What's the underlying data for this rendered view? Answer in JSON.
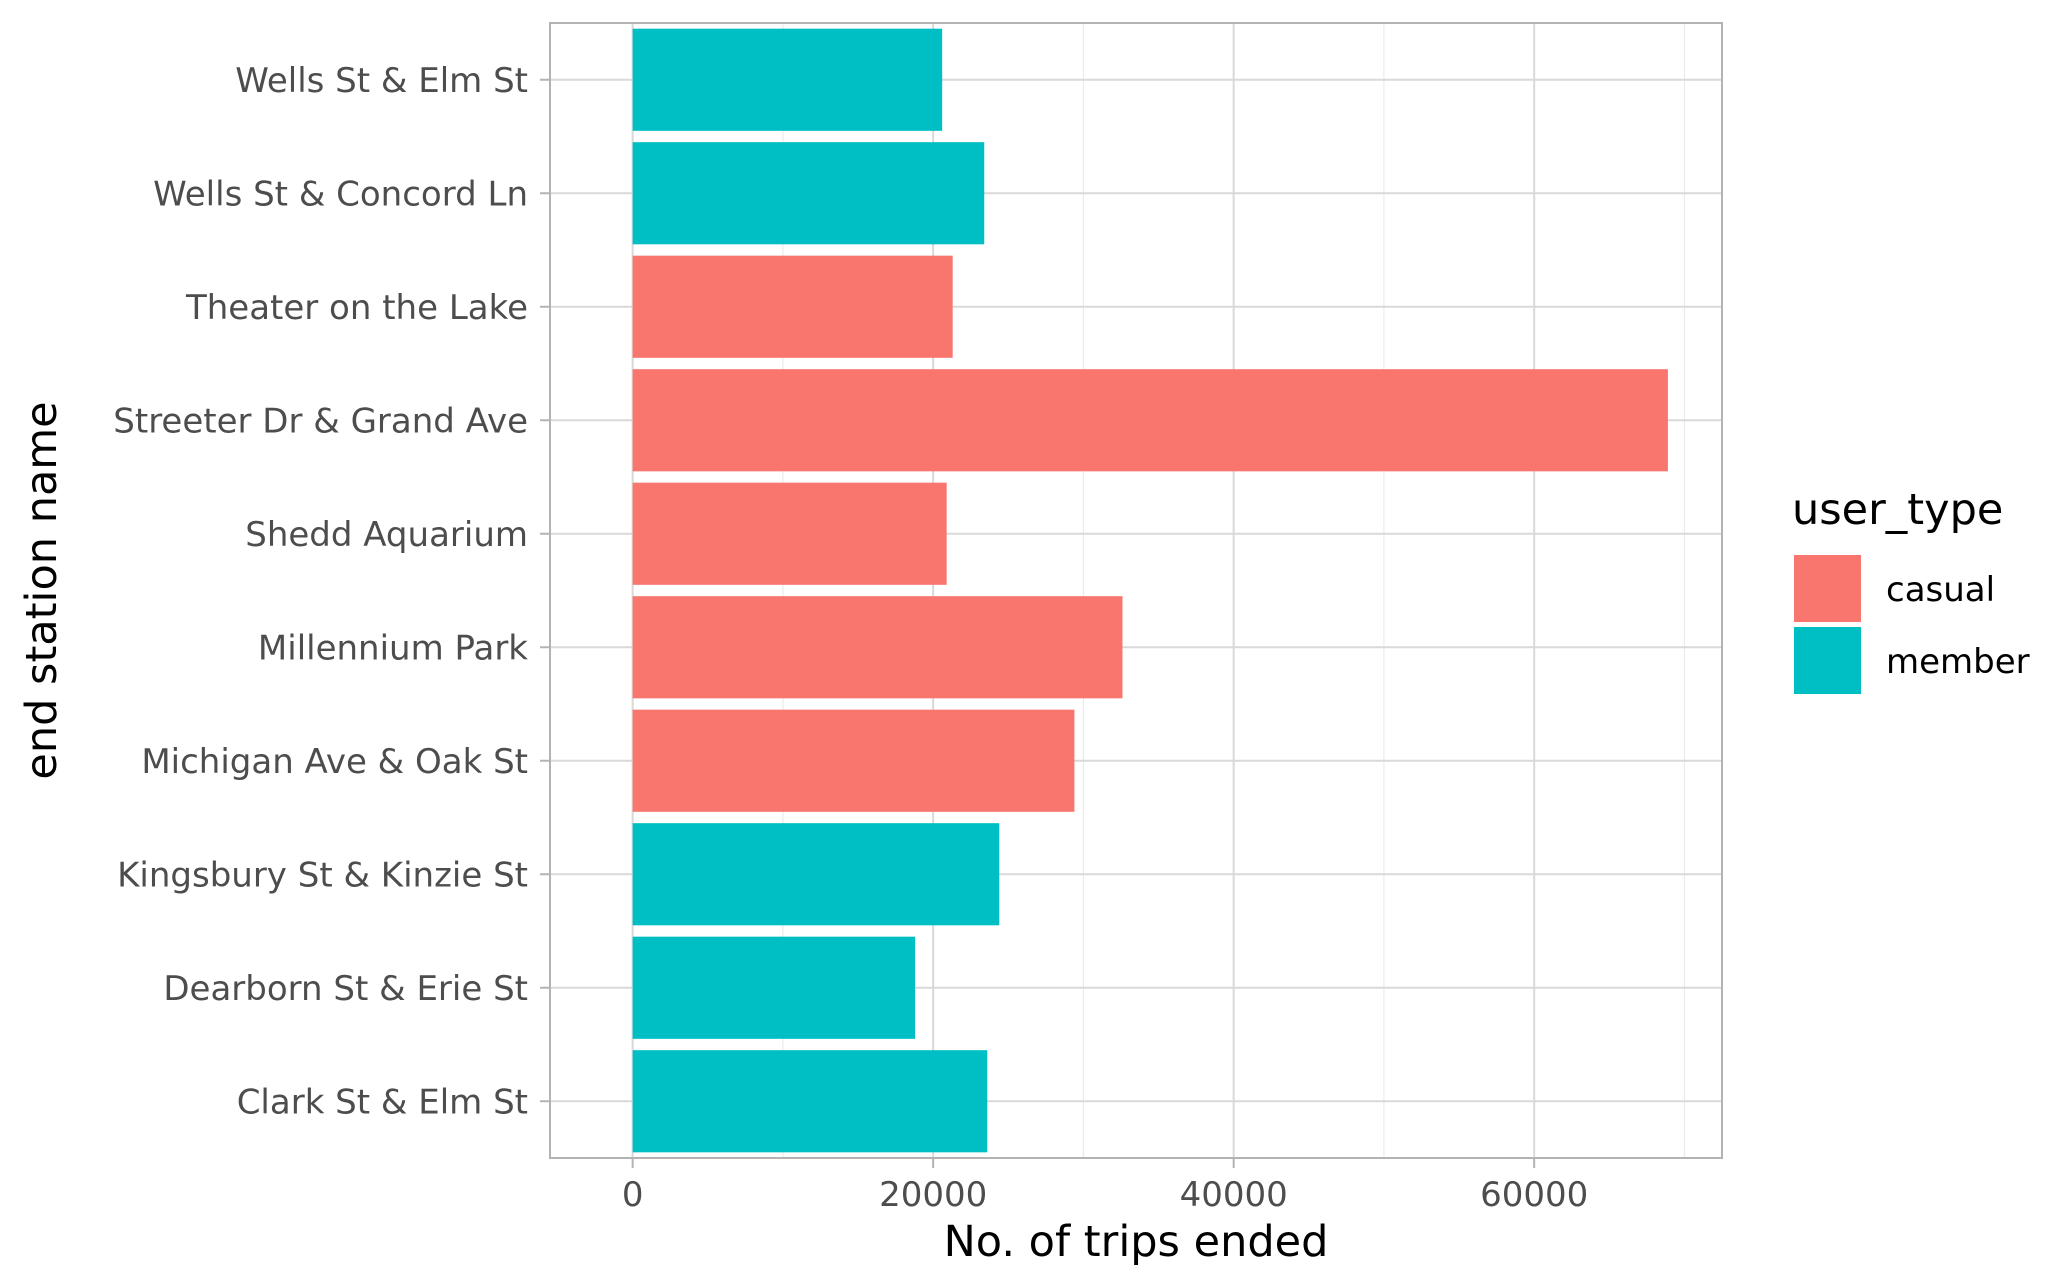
{
  "chart_data": {
    "type": "bar",
    "orientation": "horizontal",
    "title": "",
    "xlabel": "No. of trips ended",
    "ylabel": "end station name",
    "xlim": [
      -5500,
      72500
    ],
    "xticks": [
      0,
      20000,
      40000,
      60000
    ],
    "xtick_labels": [
      "0",
      "20000",
      "40000",
      "60000"
    ],
    "minor_gridlines": [
      10000,
      30000,
      50000,
      70000
    ],
    "grid": true,
    "legend": {
      "title": "user_type",
      "placement": "right",
      "entries": [
        {
          "label": "casual",
          "color": "#f8766d"
        },
        {
          "label": "member",
          "color": "#00bfc4"
        }
      ]
    },
    "categories": [
      "Wells St & Elm St",
      "Wells St & Concord Ln",
      "Theater on the Lake",
      "Streeter Dr & Grand Ave",
      "Shedd Aquarium",
      "Millennium Park",
      "Michigan Ave & Oak St",
      "Kingsbury St & Kinzie St",
      "Dearborn St & Erie St",
      "Clark St & Elm St"
    ],
    "bars": [
      {
        "category": "Wells St & Elm St",
        "value": 20600,
        "user_type": "member"
      },
      {
        "category": "Wells St & Concord Ln",
        "value": 23400,
        "user_type": "member"
      },
      {
        "category": "Theater on the Lake",
        "value": 21300,
        "user_type": "casual"
      },
      {
        "category": "Streeter Dr & Grand Ave",
        "value": 68900,
        "user_type": "casual"
      },
      {
        "category": "Shedd Aquarium",
        "value": 20900,
        "user_type": "casual"
      },
      {
        "category": "Millennium Park",
        "value": 32600,
        "user_type": "casual"
      },
      {
        "category": "Michigan Ave & Oak St",
        "value": 29400,
        "user_type": "casual"
      },
      {
        "category": "Kingsbury St & Kinzie St",
        "value": 24400,
        "user_type": "member"
      },
      {
        "category": "Dearborn St & Erie St",
        "value": 18800,
        "user_type": "member"
      },
      {
        "category": "Clark St & Elm St",
        "value": 23600,
        "user_type": "member"
      }
    ],
    "colors": {
      "casual": "#f8766d",
      "member": "#00bfc4",
      "panel_border": "#b3b3b3",
      "grid_major": "#d9d9d9",
      "grid_minor": "#ebebeb"
    }
  }
}
